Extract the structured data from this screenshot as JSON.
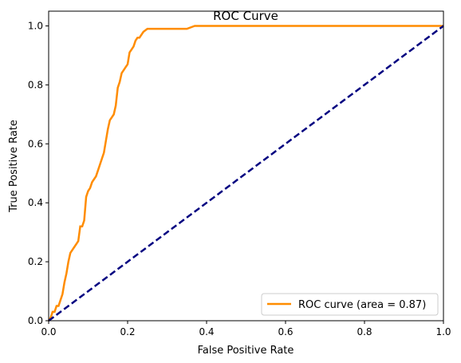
{
  "chart_data": {
    "type": "line",
    "title": "ROC Curve",
    "xlabel": "False Positive Rate",
    "ylabel": "True Positive Rate",
    "xlim": [
      0.0,
      1.0
    ],
    "ylim": [
      0.0,
      1.05
    ],
    "grid": false,
    "legend_position": "lower right",
    "x_ticks": [
      0.0,
      0.2,
      0.4,
      0.6,
      0.8,
      1.0
    ],
    "x_tick_labels": [
      "0.0",
      "0.2",
      "0.4",
      "0.6",
      "0.8",
      "1.0"
    ],
    "y_ticks": [
      0.0,
      0.2,
      0.4,
      0.6,
      0.8,
      1.0
    ],
    "y_tick_labels": [
      "0.0",
      "0.2",
      "0.4",
      "0.6",
      "0.8",
      "1.0"
    ],
    "series": [
      {
        "name": "ROC curve (area = 0.87)",
        "color": "#ff8c00",
        "dash": "solid",
        "x": [
          0.0,
          0.005,
          0.01,
          0.015,
          0.02,
          0.025,
          0.03,
          0.035,
          0.04,
          0.045,
          0.05,
          0.055,
          0.06,
          0.065,
          0.07,
          0.075,
          0.08,
          0.085,
          0.09,
          0.095,
          0.1,
          0.105,
          0.11,
          0.115,
          0.12,
          0.125,
          0.13,
          0.135,
          0.14,
          0.145,
          0.15,
          0.155,
          0.16,
          0.165,
          0.17,
          0.175,
          0.18,
          0.185,
          0.19,
          0.195,
          0.2,
          0.205,
          0.21,
          0.215,
          0.22,
          0.225,
          0.23,
          0.235,
          0.24,
          0.245,
          0.25,
          0.26,
          0.27,
          0.28,
          0.29,
          0.3,
          0.35,
          0.37,
          0.4,
          0.6,
          0.8,
          1.0
        ],
        "y": [
          0.0,
          0.01,
          0.03,
          0.03,
          0.05,
          0.05,
          0.07,
          0.09,
          0.13,
          0.16,
          0.2,
          0.23,
          0.24,
          0.25,
          0.26,
          0.27,
          0.32,
          0.32,
          0.34,
          0.42,
          0.44,
          0.45,
          0.47,
          0.48,
          0.49,
          0.51,
          0.53,
          0.55,
          0.57,
          0.61,
          0.65,
          0.68,
          0.69,
          0.7,
          0.73,
          0.79,
          0.81,
          0.84,
          0.85,
          0.86,
          0.87,
          0.91,
          0.92,
          0.93,
          0.95,
          0.96,
          0.96,
          0.97,
          0.98,
          0.985,
          0.99,
          0.99,
          0.99,
          0.99,
          0.99,
          0.99,
          0.99,
          1.0,
          1.0,
          1.0,
          1.0,
          1.0
        ]
      },
      {
        "name": "",
        "color": "#000080",
        "dash": "dashed",
        "x": [
          0.0,
          1.0
        ],
        "y": [
          0.0,
          1.0
        ]
      }
    ]
  }
}
